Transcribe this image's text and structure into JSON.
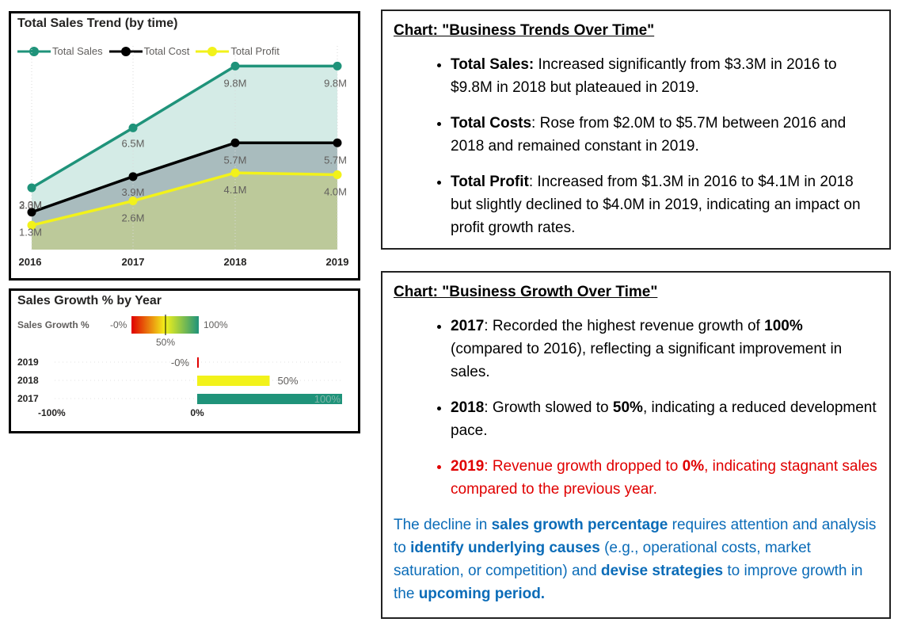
{
  "colors": {
    "sales": "#1f937a",
    "cost": "#000000",
    "profit": "#f2f21a",
    "sales_area": "#d4ebe6",
    "cost_area": "#a9bcbe",
    "profit_area": "#bcc99a",
    "growth_low": "#e00000",
    "growth_mid": "#f2f21a",
    "growth_high": "#1f937a",
    "red_text": "#e00000",
    "blue_text": "#0b6cb8"
  },
  "chart_data": [
    {
      "type": "area",
      "title": "Total Sales Trend (by time)",
      "categories": [
        "2016",
        "2017",
        "2018",
        "2019"
      ],
      "series": [
        {
          "name": "Total Sales",
          "values": [
            3.3,
            6.5,
            9.8,
            9.8
          ],
          "labels": [
            "3.3M",
            "6.5M",
            "9.8M",
            "9.8M"
          ]
        },
        {
          "name": "Total Cost",
          "values": [
            2.0,
            3.9,
            5.7,
            5.7
          ],
          "labels": [
            "2.0M",
            "3.9M",
            "5.7M",
            "5.7M"
          ]
        },
        {
          "name": "Total Profit",
          "values": [
            1.3,
            2.6,
            4.1,
            4.0
          ],
          "labels": [
            "1.3M",
            "2.6M",
            "4.1M",
            "4.0M"
          ]
        }
      ],
      "ylim": [
        0,
        11
      ],
      "legend": "top-left",
      "grid": false
    },
    {
      "type": "bar",
      "title": "Sales Growth % by Year",
      "categories": [
        "2019",
        "2018",
        "2017"
      ],
      "values": [
        -0.0,
        50,
        100
      ],
      "data_labels": [
        "-0%",
        "50%",
        "100%"
      ],
      "xlim": [
        -100,
        100
      ],
      "tick_labels": [
        "-100%",
        "0%"
      ],
      "color_scale": {
        "label": "Sales Growth %",
        "min_label": "-0%",
        "mid_label": "50%",
        "max_label": "100%"
      },
      "grid": false
    }
  ],
  "box1": {
    "heading": "Chart: \"Business Trends Over Time\"",
    "bullets": [
      {
        "lead": "Total Sales:",
        "text": " Increased significantly from $3.3M in 2016 to $9.8M in 2018 but plateaued in 2019."
      },
      {
        "lead": "Total Costs",
        "text": ": Rose from $2.0M to $5.7M between 2016 and 2018 and remained constant in 2019."
      },
      {
        "lead": "Total Profit",
        "text": ": Increased from $1.3M in 2016 to $4.1M in 2018 but slightly declined to $4.0M in 2019, indicating an impact on profit growth rates."
      }
    ]
  },
  "box2": {
    "heading": "Chart: \"Business Growth Over Time\"",
    "b1": {
      "lead": "2017",
      "t1": ": Recorded the highest revenue growth of ",
      "bold": "100%",
      "t2": " (compared to 2016), reflecting a significant improvement in sales."
    },
    "b2": {
      "lead": "2018",
      "t1": ": Growth slowed to ",
      "bold": "50%",
      "t2": ", indicating a reduced development pace."
    },
    "b3": {
      "lead": "2019",
      "t1": ": Revenue growth dropped to ",
      "bold": "0%",
      "t2": ", indicating stagnant sales compared to the previous year."
    },
    "conclusion": {
      "p1": "The decline in ",
      "b1": "sales growth percentage",
      "p2": " requires attention and analysis to ",
      "b2": "identify underlying causes",
      "p3": " (e.g., operational costs, market saturation, or competition) and ",
      "b3": "devise strategies",
      "p4": " to improve growth in the ",
      "b4": "upcoming period."
    }
  }
}
